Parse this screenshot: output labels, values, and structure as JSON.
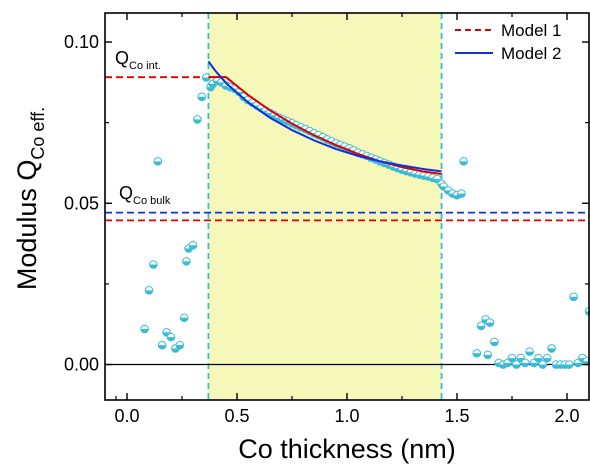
{
  "chart_data": {
    "type": "scatter",
    "xlabel": "Co thickness (nm)",
    "ylabel_main": "Modulus Q",
    "ylabel_sub": "Co eff.",
    "xlim": [
      -0.1,
      2.1
    ],
    "ylim": [
      -0.011,
      0.109
    ],
    "xticks": [
      0.0,
      0.5,
      1.0,
      1.5,
      2.0
    ],
    "xtick_labels": [
      "0.0",
      "0.5",
      "1.0",
      "1.5",
      "2.0"
    ],
    "yticks": [
      0.0,
      0.05,
      0.1
    ],
    "ytick_labels": [
      "0.00",
      "0.05",
      "0.10"
    ],
    "shaded_region": {
      "x0": 0.37,
      "x1": 1.43,
      "fill": "#f5f8b8",
      "edge_color": "#3bbcd6"
    },
    "legend": {
      "position": "top-right",
      "entries": [
        {
          "label": "Model 1",
          "color": "#e00000",
          "style": "dashed"
        },
        {
          "label": "Model 2",
          "color": "#1030e0",
          "style": "solid"
        }
      ]
    },
    "annotations": [
      {
        "main": "Q",
        "sub": "Co int.",
        "x": 0.0,
        "y": 0.091
      },
      {
        "main": "Q",
        "sub": "Co bulk",
        "x": 0.0,
        "y": 0.0515
      }
    ],
    "reference_lines": [
      {
        "color": "#e00000",
        "style": "dashed",
        "y": 0.0891,
        "x0": -0.1,
        "x1": 0.37
      },
      {
        "color": "#e00000",
        "style": "dashed",
        "y": 0.0447,
        "x0": -0.1,
        "x1": 2.1
      },
      {
        "color": "#1030e0",
        "style": "dashed",
        "y": 0.0471,
        "x0": -0.1,
        "x1": 2.1
      },
      {
        "color": "#000000",
        "style": "solid",
        "y": 0.0,
        "x0": -0.1,
        "x1": 2.1
      }
    ],
    "series": [
      {
        "name": "Model 1",
        "color": "#e00000",
        "style": "solid",
        "x": [
          0.37,
          0.45,
          0.55,
          0.65,
          0.75,
          0.85,
          0.95,
          1.05,
          1.15,
          1.25,
          1.35,
          1.43
        ],
        "y": [
          0.0891,
          0.0891,
          0.0836,
          0.0788,
          0.0747,
          0.0711,
          0.068,
          0.0653,
          0.063,
          0.0612,
          0.0598,
          0.0591
        ]
      },
      {
        "name": "Model 2",
        "color": "#1030e0",
        "style": "solid",
        "x": [
          0.37,
          0.4,
          0.45,
          0.55,
          0.65,
          0.75,
          0.85,
          0.95,
          1.05,
          1.15,
          1.25,
          1.35,
          1.43
        ],
        "y": [
          0.094,
          0.0912,
          0.0873,
          0.0813,
          0.0765,
          0.0727,
          0.0695,
          0.0668,
          0.0647,
          0.063,
          0.0617,
          0.0606,
          0.0599
        ]
      },
      {
        "name": "",
        "color": "#3bbcd6",
        "type": "scatter",
        "points": [
          [
            0.08,
            0.011
          ],
          [
            0.1,
            0.023
          ],
          [
            0.12,
            0.031
          ],
          [
            0.14,
            0.063
          ],
          [
            0.16,
            0.006
          ],
          [
            0.18,
            0.01
          ],
          [
            0.2,
            0.0085
          ],
          [
            0.22,
            0.005
          ],
          [
            0.24,
            0.006
          ],
          [
            0.26,
            0.0145
          ],
          [
            0.27,
            0.032
          ],
          [
            0.28,
            0.036
          ],
          [
            0.3,
            0.037
          ],
          [
            0.32,
            0.076
          ],
          [
            0.34,
            0.083
          ],
          [
            0.36,
            0.089
          ],
          [
            0.38,
            0.086
          ],
          [
            0.39,
            0.087
          ],
          [
            0.41,
            0.088
          ],
          [
            0.43,
            0.0875
          ],
          [
            0.45,
            0.0865
          ],
          [
            0.47,
            0.086
          ],
          [
            0.49,
            0.0855
          ],
          [
            0.51,
            0.0845
          ],
          [
            0.53,
            0.083
          ],
          [
            0.55,
            0.082
          ],
          [
            0.57,
            0.0812
          ],
          [
            0.59,
            0.0803
          ],
          [
            0.61,
            0.0795
          ],
          [
            0.63,
            0.0787
          ],
          [
            0.65,
            0.078
          ],
          [
            0.67,
            0.0773
          ],
          [
            0.69,
            0.0766
          ],
          [
            0.71,
            0.076
          ],
          [
            0.73,
            0.0754
          ],
          [
            0.75,
            0.0748
          ],
          [
            0.77,
            0.0742
          ],
          [
            0.79,
            0.0736
          ],
          [
            0.81,
            0.073
          ],
          [
            0.83,
            0.0724
          ],
          [
            0.85,
            0.0717
          ],
          [
            0.87,
            0.0711
          ],
          [
            0.89,
            0.0705
          ],
          [
            0.91,
            0.0698
          ],
          [
            0.93,
            0.0692
          ],
          [
            0.95,
            0.0686
          ],
          [
            0.97,
            0.0681
          ],
          [
            0.99,
            0.0676
          ],
          [
            1.01,
            0.0671
          ],
          [
            1.03,
            0.0664
          ],
          [
            1.05,
            0.0657
          ],
          [
            1.07,
            0.0652
          ],
          [
            1.09,
            0.0647
          ],
          [
            1.11,
            0.0641
          ],
          [
            1.13,
            0.0636
          ],
          [
            1.15,
            0.063
          ],
          [
            1.17,
            0.0625
          ],
          [
            1.19,
            0.062
          ],
          [
            1.21,
            0.0614
          ],
          [
            1.23,
            0.0609
          ],
          [
            1.25,
            0.0604
          ],
          [
            1.27,
            0.06
          ],
          [
            1.29,
            0.0596
          ],
          [
            1.31,
            0.0592
          ],
          [
            1.33,
            0.0589
          ],
          [
            1.35,
            0.0586
          ],
          [
            1.37,
            0.0583
          ],
          [
            1.39,
            0.0579
          ],
          [
            1.41,
            0.0575
          ],
          [
            1.43,
            0.056
          ],
          [
            1.44,
            0.0552
          ],
          [
            1.46,
            0.054
          ],
          [
            1.48,
            0.053
          ],
          [
            1.5,
            0.0525
          ],
          [
            1.52,
            0.053
          ],
          [
            1.53,
            0.063
          ],
          [
            1.59,
            0.0035
          ],
          [
            1.61,
            0.012
          ],
          [
            1.63,
            0.014
          ],
          [
            1.64,
            0.003
          ],
          [
            1.65,
            0.013
          ],
          [
            1.67,
            0.007
          ],
          [
            1.69,
            0.0005
          ],
          [
            1.71,
            0.0
          ],
          [
            1.73,
            0.0005
          ],
          [
            1.75,
            0.002
          ],
          [
            1.77,
            0.0
          ],
          [
            1.79,
            0.002
          ],
          [
            1.81,
            0.0005
          ],
          [
            1.83,
            0.004
          ],
          [
            1.85,
            0.0005
          ],
          [
            1.87,
            0.002
          ],
          [
            1.89,
            0.0
          ],
          [
            1.91,
            0.002
          ],
          [
            1.93,
            0.005
          ],
          [
            1.95,
            0.0
          ],
          [
            1.97,
            0.0
          ],
          [
            1.99,
            0.0
          ],
          [
            2.01,
            0.0
          ],
          [
            2.03,
            0.021
          ],
          [
            2.05,
            0.0005
          ],
          [
            2.07,
            0.002
          ],
          [
            2.09,
            0.001
          ],
          [
            2.1,
            0.0165
          ]
        ]
      }
    ]
  }
}
